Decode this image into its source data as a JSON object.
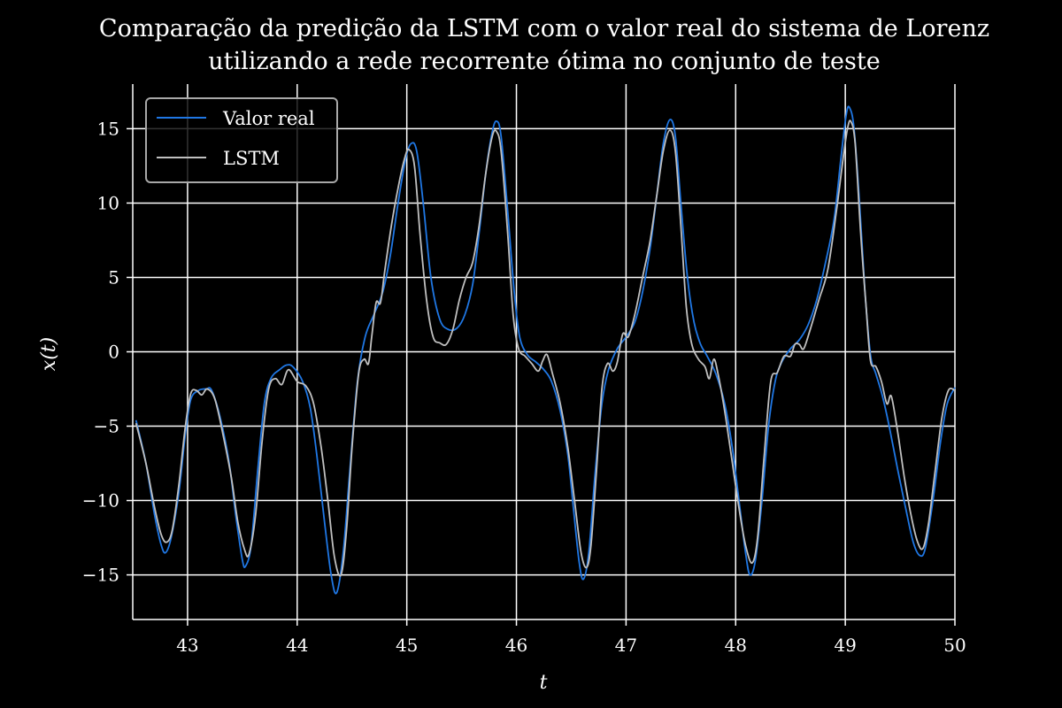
{
  "chart_data": {
    "type": "line",
    "title_line1": "Comparação da predição da LSTM com o valor real do sistema de Lorenz",
    "title_line2": "utilizando a rede recorrente ótima no conjunto de teste",
    "xlabel": "t",
    "ylabel": "x(t)",
    "xlim": [
      42.5,
      50
    ],
    "ylim": [
      -18,
      18
    ],
    "xticks": [
      43,
      44,
      45,
      46,
      47,
      48,
      49,
      50
    ],
    "xtick_labels": [
      "43",
      "44",
      "45",
      "46",
      "47",
      "48",
      "49",
      "50"
    ],
    "yticks": [
      15,
      10,
      5,
      0,
      -5,
      -10,
      -15
    ],
    "ytick_labels": [
      "15",
      "10",
      "5",
      "0",
      "−5",
      "−10",
      "−15"
    ],
    "grid": true,
    "legend_position": "top-left",
    "series": [
      {
        "name": "Valor real",
        "color": "#1f77e4",
        "points": [
          [
            42.53,
            -4.6
          ],
          [
            42.62,
            -7.5
          ],
          [
            42.7,
            -11.0
          ],
          [
            42.76,
            -13.0
          ],
          [
            42.8,
            -13.5
          ],
          [
            42.85,
            -12.5
          ],
          [
            42.92,
            -9.5
          ],
          [
            42.98,
            -5.5
          ],
          [
            43.03,
            -3.2
          ],
          [
            43.1,
            -2.6
          ],
          [
            43.17,
            -2.5
          ],
          [
            43.22,
            -2.6
          ],
          [
            43.3,
            -4.5
          ],
          [
            43.38,
            -7.5
          ],
          [
            43.44,
            -11.0
          ],
          [
            43.5,
            -14.0
          ],
          [
            43.53,
            -14.4
          ],
          [
            43.58,
            -13.0
          ],
          [
            43.64,
            -8.0
          ],
          [
            43.7,
            -3.5
          ],
          [
            43.76,
            -1.8
          ],
          [
            43.84,
            -1.2
          ],
          [
            43.9,
            -0.9
          ],
          [
            43.96,
            -1.0
          ],
          [
            44.05,
            -2.0
          ],
          [
            44.12,
            -3.8
          ],
          [
            44.18,
            -7.0
          ],
          [
            44.25,
            -11.5
          ],
          [
            44.31,
            -15.0
          ],
          [
            44.36,
            -16.2
          ],
          [
            44.42,
            -13.5
          ],
          [
            44.48,
            -8.0
          ],
          [
            44.55,
            -2.0
          ],
          [
            44.62,
            1.0
          ],
          [
            44.7,
            2.5
          ],
          [
            44.78,
            4.0
          ],
          [
            44.85,
            6.5
          ],
          [
            44.92,
            10.0
          ],
          [
            44.99,
            13.0
          ],
          [
            45.04,
            14.0
          ],
          [
            45.09,
            13.5
          ],
          [
            45.15,
            10.0
          ],
          [
            45.22,
            5.0
          ],
          [
            45.3,
            2.2
          ],
          [
            45.38,
            1.5
          ],
          [
            45.46,
            1.6
          ],
          [
            45.53,
            2.5
          ],
          [
            45.6,
            4.5
          ],
          [
            45.66,
            8.0
          ],
          [
            45.72,
            12.0
          ],
          [
            45.78,
            14.8
          ],
          [
            45.82,
            15.5
          ],
          [
            45.86,
            14.5
          ],
          [
            45.92,
            9.5
          ],
          [
            45.98,
            4.0
          ],
          [
            46.03,
            1.0
          ],
          [
            46.1,
            -0.2
          ],
          [
            46.18,
            -0.7
          ],
          [
            46.25,
            -1.2
          ],
          [
            46.32,
            -2.0
          ],
          [
            46.4,
            -4.0
          ],
          [
            46.47,
            -7.0
          ],
          [
            46.52,
            -10.5
          ],
          [
            46.57,
            -14.0
          ],
          [
            46.61,
            -15.3
          ],
          [
            46.66,
            -13.5
          ],
          [
            46.72,
            -8.0
          ],
          [
            46.78,
            -3.5
          ],
          [
            46.84,
            -1.2
          ],
          [
            46.92,
            0.2
          ],
          [
            47.0,
            1.0
          ],
          [
            47.08,
            2.0
          ],
          [
            47.15,
            4.0
          ],
          [
            47.22,
            7.0
          ],
          [
            47.28,
            10.5
          ],
          [
            47.34,
            14.0
          ],
          [
            47.4,
            15.6
          ],
          [
            47.45,
            14.5
          ],
          [
            47.5,
            10.0
          ],
          [
            47.56,
            5.0
          ],
          [
            47.62,
            2.0
          ],
          [
            47.68,
            0.5
          ],
          [
            47.74,
            -0.3
          ],
          [
            47.82,
            -1.5
          ],
          [
            47.9,
            -3.5
          ],
          [
            47.97,
            -6.5
          ],
          [
            48.03,
            -10.0
          ],
          [
            48.09,
            -13.5
          ],
          [
            48.13,
            -15.0
          ],
          [
            48.18,
            -14.0
          ],
          [
            48.24,
            -10.0
          ],
          [
            48.3,
            -5.0
          ],
          [
            48.36,
            -2.0
          ],
          [
            48.42,
            -0.7
          ],
          [
            48.5,
            0.2
          ],
          [
            48.58,
            0.8
          ],
          [
            48.66,
            1.8
          ],
          [
            48.74,
            3.5
          ],
          [
            48.82,
            6.0
          ],
          [
            48.9,
            9.0
          ],
          [
            48.96,
            13.0
          ],
          [
            49.01,
            16.0
          ],
          [
            49.04,
            16.4
          ],
          [
            49.08,
            15.0
          ],
          [
            49.13,
            10.0
          ],
          [
            49.18,
            4.0
          ],
          [
            49.23,
            -0.2
          ],
          [
            49.28,
            -1.5
          ],
          [
            49.34,
            -3.0
          ],
          [
            49.4,
            -5.0
          ],
          [
            49.48,
            -8.0
          ],
          [
            49.55,
            -10.5
          ],
          [
            49.62,
            -12.8
          ],
          [
            49.68,
            -13.7
          ],
          [
            49.73,
            -13.2
          ],
          [
            49.8,
            -10.0
          ],
          [
            49.87,
            -6.0
          ],
          [
            49.93,
            -3.5
          ],
          [
            50.0,
            -2.4
          ]
        ]
      },
      {
        "name": "LSTM",
        "color": "#c0c0c0",
        "points": [
          [
            42.53,
            -4.8
          ],
          [
            42.62,
            -7.5
          ],
          [
            42.7,
            -10.5
          ],
          [
            42.76,
            -12.3
          ],
          [
            42.81,
            -12.8
          ],
          [
            42.86,
            -12.0
          ],
          [
            42.92,
            -9.0
          ],
          [
            42.98,
            -5.0
          ],
          [
            43.03,
            -2.8
          ],
          [
            43.08,
            -2.6
          ],
          [
            43.13,
            -2.9
          ],
          [
            43.18,
            -2.5
          ],
          [
            43.25,
            -3.2
          ],
          [
            43.33,
            -5.8
          ],
          [
            43.4,
            -8.5
          ],
          [
            43.46,
            -11.5
          ],
          [
            43.52,
            -13.3
          ],
          [
            43.56,
            -13.6
          ],
          [
            43.62,
            -11.0
          ],
          [
            43.68,
            -6.0
          ],
          [
            43.74,
            -2.5
          ],
          [
            43.8,
            -1.8
          ],
          [
            43.86,
            -2.2
          ],
          [
            43.92,
            -1.2
          ],
          [
            44.0,
            -2.0
          ],
          [
            44.08,
            -2.3
          ],
          [
            44.15,
            -3.5
          ],
          [
            44.22,
            -6.5
          ],
          [
            44.28,
            -10.0
          ],
          [
            44.34,
            -13.8
          ],
          [
            44.4,
            -15.0
          ],
          [
            44.45,
            -12.0
          ],
          [
            44.5,
            -6.5
          ],
          [
            44.56,
            -1.5
          ],
          [
            44.61,
            -0.5
          ],
          [
            44.65,
            -0.8
          ],
          [
            44.68,
            1.0
          ],
          [
            44.72,
            3.3
          ],
          [
            44.76,
            3.3
          ],
          [
            44.8,
            5.5
          ],
          [
            44.86,
            8.5
          ],
          [
            44.92,
            11.0
          ],
          [
            44.98,
            13.0
          ],
          [
            45.02,
            13.6
          ],
          [
            45.07,
            12.5
          ],
          [
            45.12,
            8.0
          ],
          [
            45.18,
            3.5
          ],
          [
            45.24,
            1.0
          ],
          [
            45.3,
            0.6
          ],
          [
            45.36,
            0.5
          ],
          [
            45.42,
            1.5
          ],
          [
            45.48,
            3.5
          ],
          [
            45.54,
            5.0
          ],
          [
            45.6,
            6.0
          ],
          [
            45.66,
            8.5
          ],
          [
            45.72,
            12.0
          ],
          [
            45.78,
            14.5
          ],
          [
            45.82,
            14.8
          ],
          [
            45.86,
            13.5
          ],
          [
            45.92,
            8.0
          ],
          [
            45.97,
            2.5
          ],
          [
            46.02,
            0.2
          ],
          [
            46.08,
            -0.3
          ],
          [
            46.14,
            -0.8
          ],
          [
            46.2,
            -1.3
          ],
          [
            46.24,
            -0.6
          ],
          [
            46.28,
            -0.2
          ],
          [
            46.33,
            -1.5
          ],
          [
            46.4,
            -3.5
          ],
          [
            46.47,
            -6.5
          ],
          [
            46.53,
            -10.0
          ],
          [
            46.59,
            -13.5
          ],
          [
            46.64,
            -14.5
          ],
          [
            46.68,
            -13.0
          ],
          [
            46.73,
            -8.0
          ],
          [
            46.78,
            -2.5
          ],
          [
            46.83,
            -0.8
          ],
          [
            46.88,
            -1.3
          ],
          [
            46.92,
            -0.7
          ],
          [
            46.97,
            1.2
          ],
          [
            47.02,
            1.0
          ],
          [
            47.08,
            2.5
          ],
          [
            47.15,
            5.0
          ],
          [
            47.22,
            7.5
          ],
          [
            47.28,
            10.5
          ],
          [
            47.34,
            13.5
          ],
          [
            47.4,
            14.9
          ],
          [
            47.45,
            13.5
          ],
          [
            47.5,
            8.5
          ],
          [
            47.55,
            3.0
          ],
          [
            47.6,
            0.5
          ],
          [
            47.66,
            -0.5
          ],
          [
            47.72,
            -1.0
          ],
          [
            47.76,
            -1.8
          ],
          [
            47.8,
            -0.5
          ],
          [
            47.84,
            -1.5
          ],
          [
            47.9,
            -4.0
          ],
          [
            47.97,
            -7.5
          ],
          [
            48.03,
            -10.5
          ],
          [
            48.09,
            -13.0
          ],
          [
            48.15,
            -14.2
          ],
          [
            48.2,
            -12.5
          ],
          [
            48.26,
            -7.0
          ],
          [
            48.32,
            -2.0
          ],
          [
            48.38,
            -1.4
          ],
          [
            48.44,
            -0.3
          ],
          [
            48.5,
            -0.3
          ],
          [
            48.54,
            0.5
          ],
          [
            48.58,
            0.5
          ],
          [
            48.62,
            0.2
          ],
          [
            48.68,
            1.5
          ],
          [
            48.76,
            3.5
          ],
          [
            48.84,
            5.5
          ],
          [
            48.92,
            9.5
          ],
          [
            48.98,
            13.0
          ],
          [
            49.02,
            15.0
          ],
          [
            49.05,
            15.5
          ],
          [
            49.09,
            14.0
          ],
          [
            49.14,
            8.0
          ],
          [
            49.19,
            3.0
          ],
          [
            49.23,
            -0.6
          ],
          [
            49.28,
            -1.0
          ],
          [
            49.33,
            -2.0
          ],
          [
            49.38,
            -3.5
          ],
          [
            49.42,
            -3.0
          ],
          [
            49.48,
            -5.5
          ],
          [
            49.54,
            -8.5
          ],
          [
            49.6,
            -11.0
          ],
          [
            49.66,
            -12.8
          ],
          [
            49.71,
            -13.2
          ],
          [
            49.76,
            -11.5
          ],
          [
            49.82,
            -8.0
          ],
          [
            49.88,
            -4.5
          ],
          [
            49.94,
            -2.6
          ],
          [
            50.0,
            -2.6
          ]
        ]
      }
    ]
  }
}
